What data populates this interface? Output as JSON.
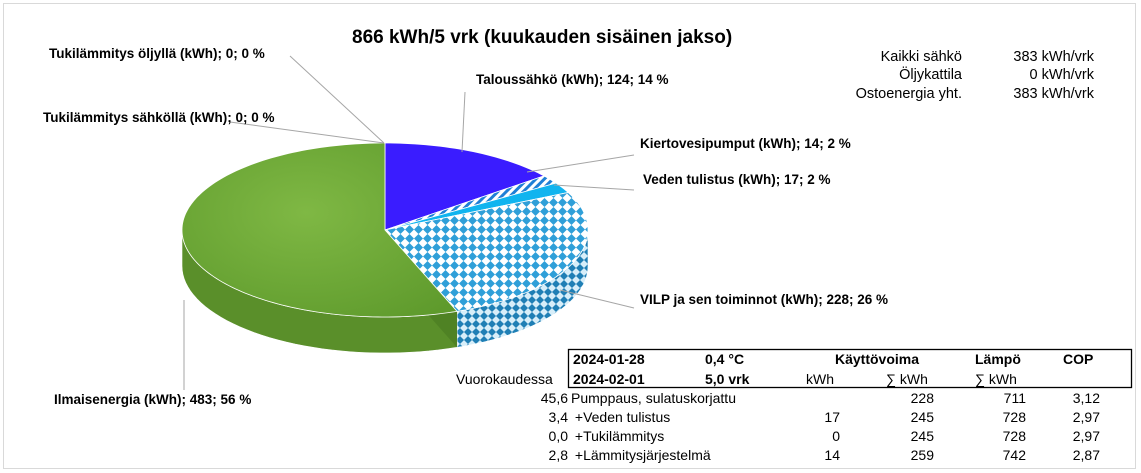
{
  "title": "866  kWh/5 vrk (kuukauden sisäinen jakso)",
  "summary": [
    {
      "label": "Kaikki sähkö",
      "value": "383 kWh/vrk"
    },
    {
      "label": "Öljykattila",
      "value": "0 kWh/vrk"
    },
    {
      "label": "Ostoenergia yht.",
      "value": "383 kWh/vrk"
    }
  ],
  "chart_data": {
    "type": "pie",
    "title": "866  kWh/5 vrk (kuukauden sisäinen jakso)",
    "slices": [
      {
        "name": "Taloussähkö (kWh)",
        "value": 124,
        "percent": 14,
        "label": "Taloussähkö (kWh); 124; 14 %",
        "color": "#3a1cff"
      },
      {
        "name": "Kiertovesipumput (kWh)",
        "value": 14,
        "percent": 2,
        "label": "Kiertovesipumput (kWh); 14; 2 %",
        "color": "#bfe9f7"
      },
      {
        "name": "Veden tulistus (kWh)",
        "value": 17,
        "percent": 2,
        "label": "Veden tulistus (kWh); 17; 2 %",
        "color": "#10b4ef"
      },
      {
        "name": "VILP ja sen toiminnot (kWh)",
        "value": 228,
        "percent": 26,
        "label": "VILP ja sen toiminnot (kWh); 228; 26 %",
        "color": "#3fa7d9"
      },
      {
        "name": "Ilmaisenergia (kWh)",
        "value": 483,
        "percent": 56,
        "label": "Ilmaisenergia (kWh); 483; 56 %",
        "color": "#72a83a"
      },
      {
        "name": "Tukilämmitys sähköllä (kWh)",
        "value": 0,
        "percent": 0,
        "label": "Tukilämmitys sähköllä (kWh); 0; 0 %",
        "color": "#999999"
      },
      {
        "name": "Tukilämmitys öljyllä (kWh)",
        "value": 0,
        "percent": 0,
        "label": "Tukilämmitys öljyllä (kWh); 0; 0 %",
        "color": "#777777"
      }
    ]
  },
  "table": {
    "header1": {
      "date": "2024-01-28",
      "temp": "0,4  °C",
      "kayttovoima": "Käyttövoima",
      "lampo": "Lämpö",
      "cop": "COP"
    },
    "header2": {
      "prefix": "Vuorokaudessa",
      "date": "2024-02-01",
      "days": "5,0  vrk",
      "kwh": "kWh",
      "sum_kwh": "∑ kWh",
      "lampo_sum": "∑ kWh"
    },
    "rows": [
      {
        "per_day": "45,6",
        "label": "Pumppaus, sulatuskorjattu",
        "kwh": "",
        "sum": "228",
        "heat": "711",
        "cop": "3,12"
      },
      {
        "per_day": "3,4",
        "label": " +Veden tulistus",
        "kwh": "17",
        "sum": "245",
        "heat": "728",
        "cop": "2,97"
      },
      {
        "per_day": "0,0",
        "label": " +Tukilämmitys",
        "kwh": "0",
        "sum": "245",
        "heat": "728",
        "cop": "2,97"
      },
      {
        "per_day": "2,8",
        "label": " +Lämmitysjärjestelmä",
        "kwh": "14",
        "sum": "259",
        "heat": "742",
        "cop": "2,87"
      }
    ]
  }
}
